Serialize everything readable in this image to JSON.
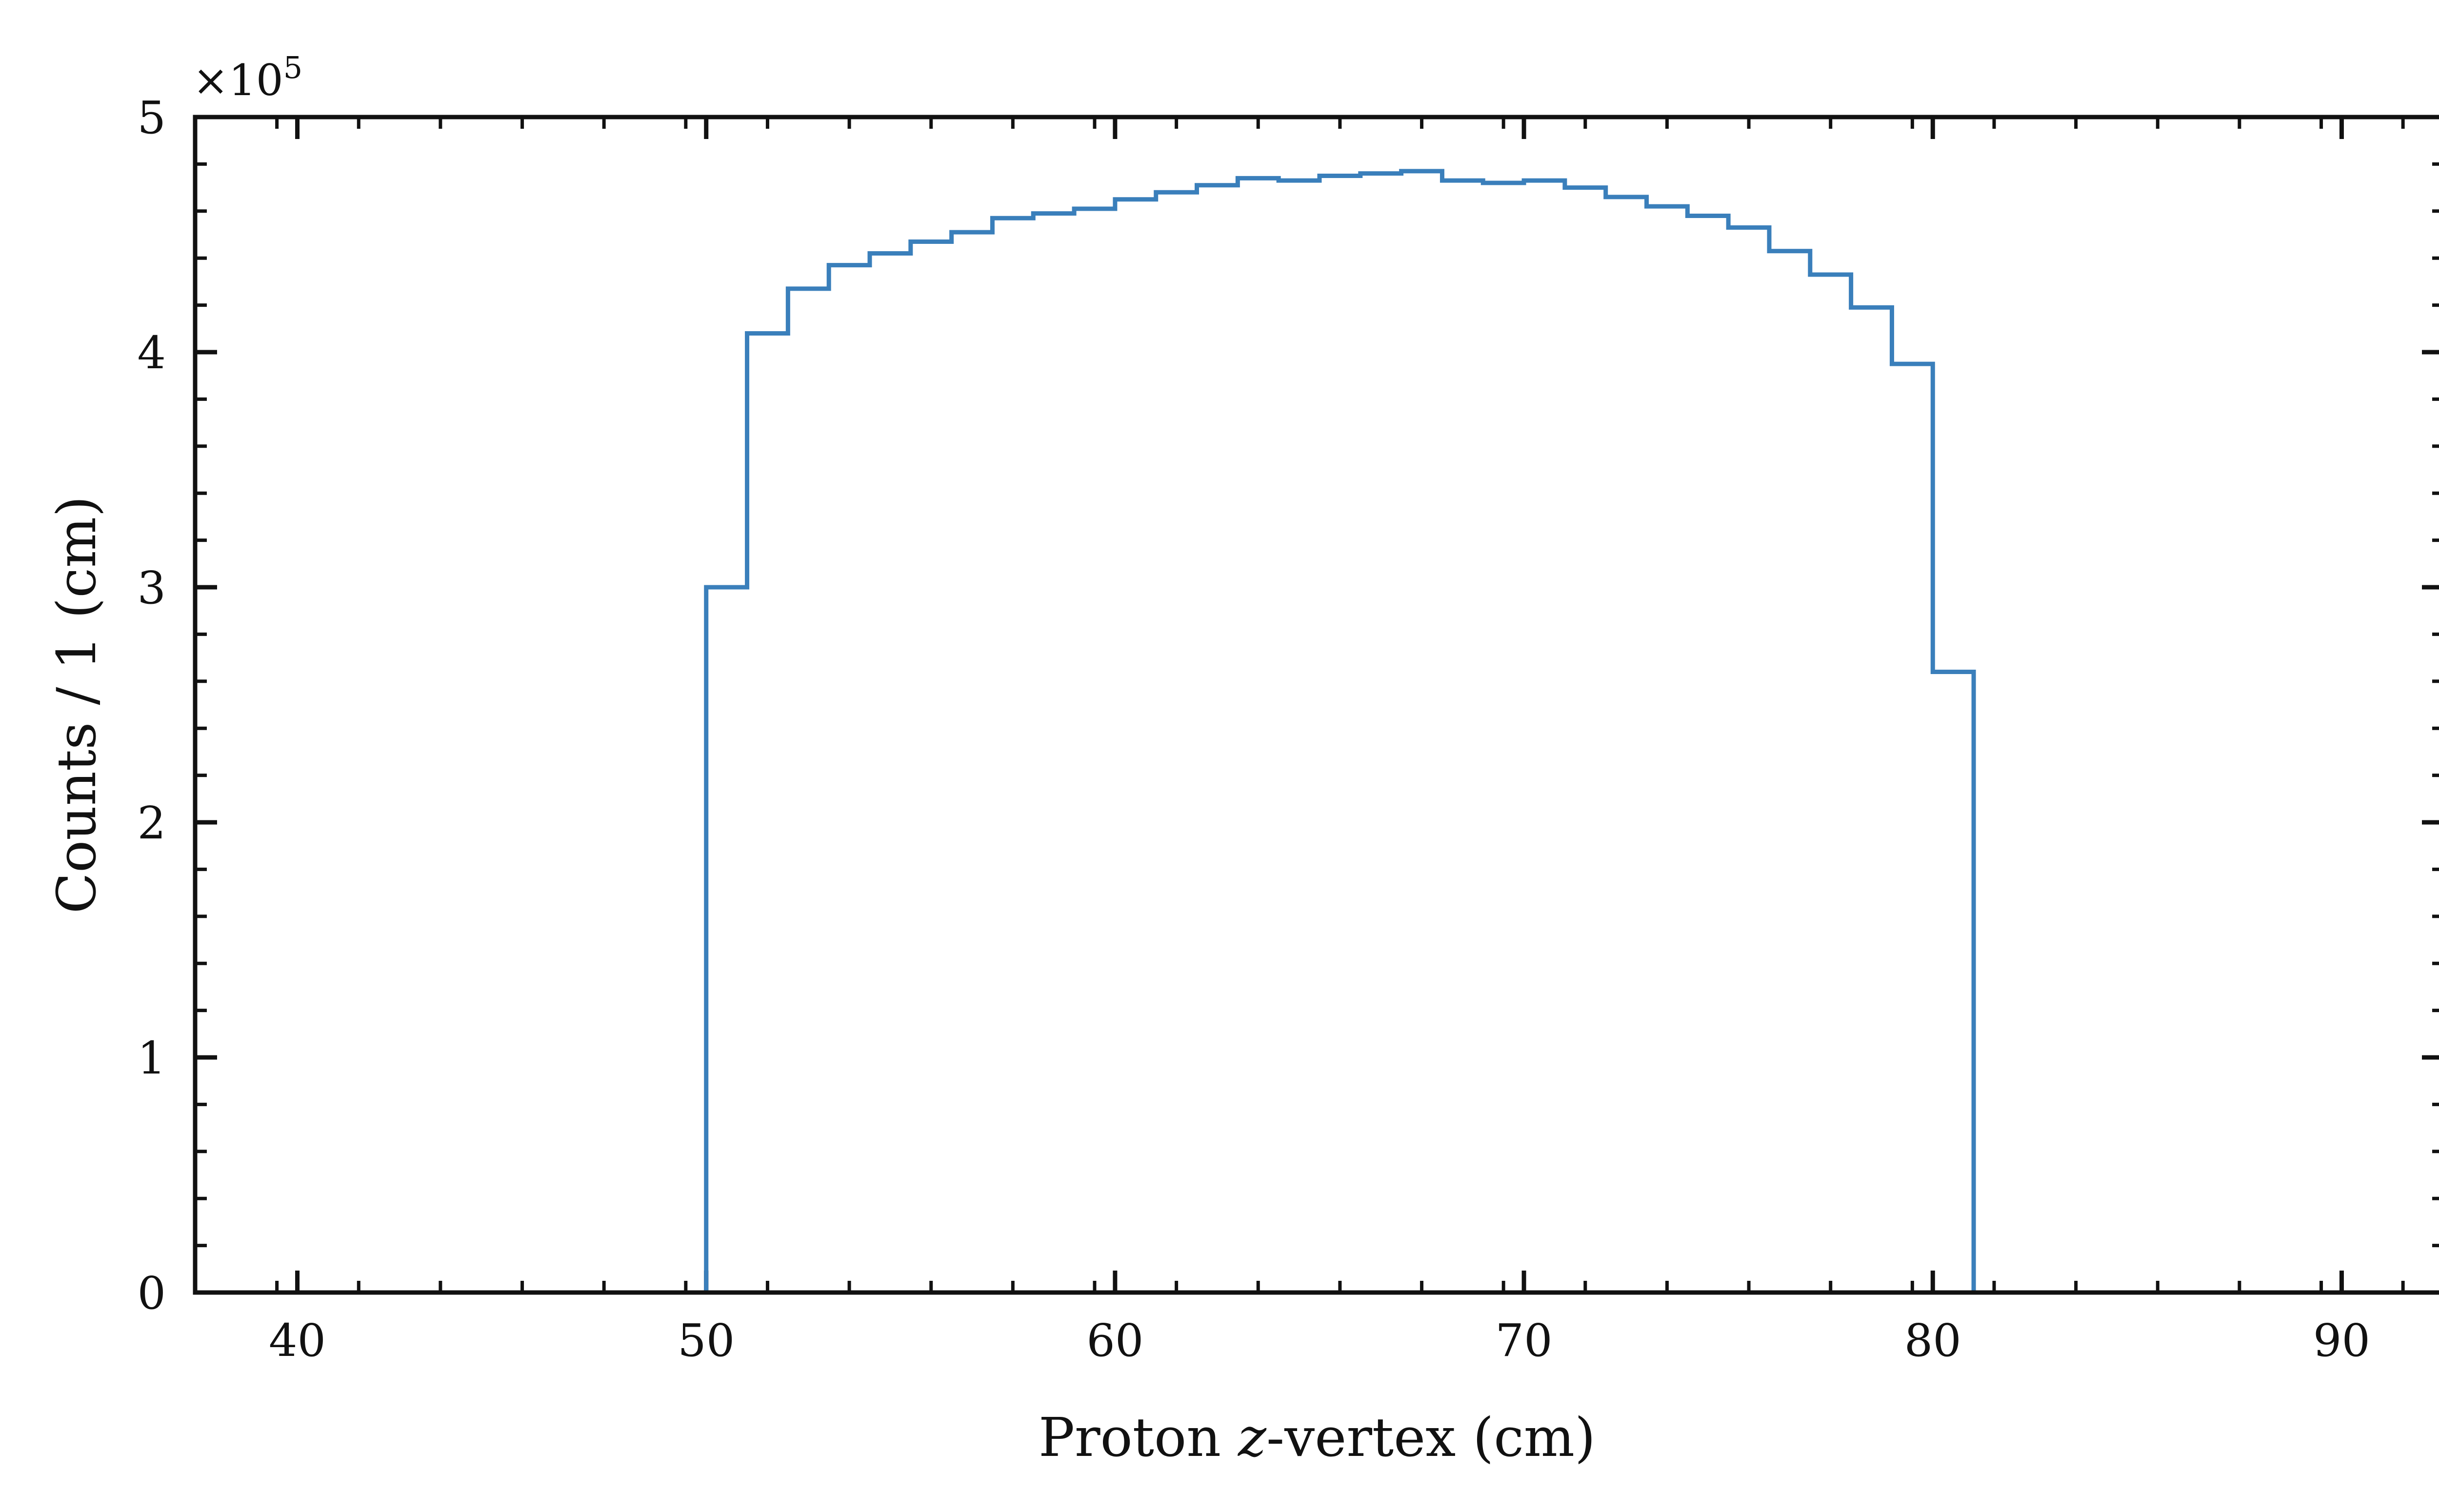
{
  "chart_data": {
    "type": "histogram",
    "xlabel": {
      "pre": "Proton ",
      "var": "z",
      "post": "-vertex (cm)"
    },
    "ylabel": "Counts / 1 (cm)",
    "y_multiplier": {
      "base": "×10",
      "exponent": "5"
    },
    "xlim": [
      37.5,
      92.5
    ],
    "ylim": [
      0,
      5
    ],
    "x_ticks": [
      40,
      50,
      60,
      70,
      80,
      90
    ],
    "y_ticks": [
      0,
      1,
      2,
      3,
      4,
      5
    ],
    "x_tick_labels": [
      "40",
      "50",
      "60",
      "70",
      "80",
      "90"
    ],
    "y_tick_labels": [
      "0",
      "1",
      "2",
      "3",
      "4",
      "5"
    ],
    "bin_edges": [
      37.5,
      38,
      39,
      40,
      41,
      42,
      43,
      44,
      45,
      46,
      47,
      48,
      49,
      50,
      51,
      52,
      53,
      54,
      55,
      56,
      57,
      58,
      59,
      60,
      61,
      62,
      63,
      64,
      65,
      66,
      67,
      68,
      69,
      70,
      71,
      72,
      73,
      74,
      75,
      76,
      77,
      78,
      79,
      80,
      81,
      82,
      83,
      84,
      85,
      86,
      87,
      88,
      89,
      90,
      91,
      92,
      92.5
    ],
    "counts_1e5": [
      0,
      0,
      0,
      0,
      0,
      0,
      0,
      0,
      0,
      0,
      0,
      0,
      0,
      3.0,
      4.08,
      4.27,
      4.37,
      4.42,
      4.47,
      4.51,
      4.57,
      4.59,
      4.61,
      4.65,
      4.68,
      4.71,
      4.74,
      4.73,
      4.75,
      4.76,
      4.77,
      4.73,
      4.72,
      4.73,
      4.7,
      4.66,
      4.62,
      4.58,
      4.53,
      4.43,
      4.33,
      4.19,
      3.95,
      2.64,
      0,
      0,
      0,
      0,
      0,
      0,
      0,
      0,
      0,
      0,
      0,
      0
    ],
    "series_color": "#3a7fbb",
    "grid": false,
    "legend": "none"
  }
}
